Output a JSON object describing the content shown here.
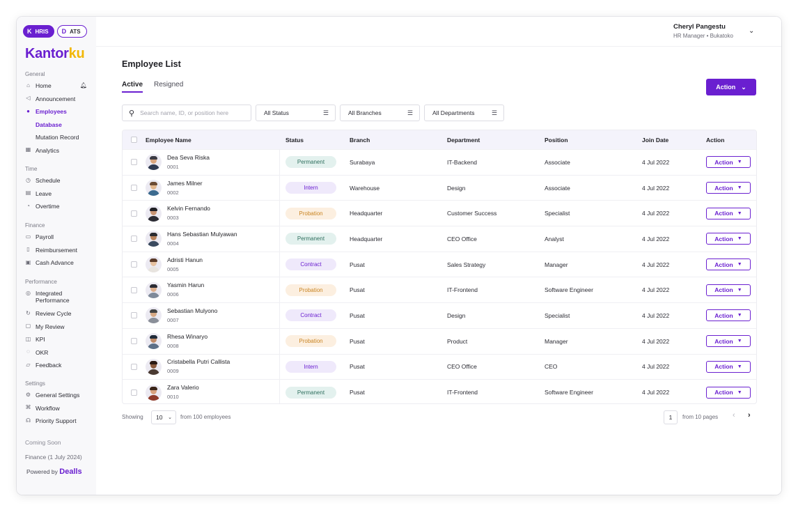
{
  "app": {
    "switcher": [
      {
        "label": "HRIS",
        "glyph": "K"
      },
      {
        "label": "ATS",
        "glyph": "D"
      }
    ],
    "logo": {
      "main": "Kantor",
      "accent": "ku"
    }
  },
  "sidebar": {
    "groups": [
      {
        "title": "General",
        "items": [
          {
            "label": "Home",
            "icon": "home-icon"
          },
          {
            "label": "Announcement",
            "icon": "megaphone-icon"
          },
          {
            "label": "Employees",
            "icon": "users-icon"
          },
          {
            "label": "Database"
          },
          {
            "label": "Mutation Record"
          },
          {
            "label": "Analytics",
            "icon": "chart-icon"
          }
        ]
      },
      {
        "title": "Time",
        "items": [
          {
            "label": "Schedule",
            "icon": "clock-icon"
          },
          {
            "label": "Leave",
            "icon": "calendar-icon"
          },
          {
            "label": "Overtime",
            "icon": "timer-icon"
          }
        ]
      },
      {
        "title": "Finance",
        "items": [
          {
            "label": "Payroll",
            "icon": "doc-icon"
          },
          {
            "label": "Reimbursement",
            "icon": "receipt-icon"
          },
          {
            "label": "Cash Advance",
            "icon": "wallet-icon"
          }
        ]
      },
      {
        "title": "Performance",
        "items": [
          {
            "label": "Integrated Performance",
            "icon": "target-icon"
          },
          {
            "label": "Review Cycle",
            "icon": "cycle-icon"
          },
          {
            "label": "My Review",
            "icon": "review-icon"
          },
          {
            "label": "KPI",
            "icon": "kpi-icon"
          },
          {
            "label": "OKR",
            "icon": "okr-icon"
          },
          {
            "label": "Feedback",
            "icon": "feedback-icon"
          }
        ]
      },
      {
        "title": "Settings",
        "items": [
          {
            "label": "General Settings",
            "icon": "gear-icon"
          },
          {
            "label": "Workflow",
            "icon": "workflow-icon"
          },
          {
            "label": "Priority Support",
            "icon": "support-icon"
          }
        ]
      }
    ],
    "coming_soon": "Coming Soon",
    "coming_item": "Finance (1 July 2024)",
    "powered_by": "Powered by",
    "powered_brand": "Dealls"
  },
  "user": {
    "name": "Cheryl Pangestu",
    "role": "HR Manager • Bukatoko"
  },
  "page": {
    "title": "Employee List"
  },
  "tabs": [
    {
      "label": "Active"
    },
    {
      "label": "Resigned"
    }
  ],
  "action_button": "Action",
  "search": {
    "placeholder": "Search name, ID, or position here"
  },
  "filters": [
    {
      "label": "All Status"
    },
    {
      "label": "All Branches"
    },
    {
      "label": "All Departments"
    }
  ],
  "table": {
    "headers": {
      "name": "Employee Name",
      "status": "Status",
      "branch": "Branch",
      "department": "Department",
      "position": "Position",
      "join_date": "Join Date",
      "action": "Action"
    },
    "rows": [
      {
        "name": "Dea Seva Riska",
        "id": "0001",
        "status": "Permanent",
        "branch": "Surabaya",
        "department": "IT-Backend",
        "position": "Associate",
        "join_date": "4 Jul 2022",
        "action": "Action"
      },
      {
        "name": "James Milner",
        "id": "0002",
        "status": "Intern",
        "branch": "Warehouse",
        "department": "Design",
        "position": "Associate",
        "join_date": "4 Jul 2022",
        "action": "Action"
      },
      {
        "name": "Kelvin Fernando",
        "id": "0003",
        "status": "Probation",
        "branch": "Headquarter",
        "department": "Customer Success",
        "position": "Specialist",
        "join_date": "4 Jul 2022",
        "action": "Action"
      },
      {
        "name": "Hans Sebastian Mulyawan",
        "id": "0004",
        "status": "Permanent",
        "branch": "Headquarter",
        "department": "CEO Office",
        "position": "Analyst",
        "join_date": "4 Jul 2022",
        "action": "Action"
      },
      {
        "name": "Adristi Hanun",
        "id": "0005",
        "status": "Contract",
        "branch": "Pusat",
        "department": "Sales Strategy",
        "position": "Manager",
        "join_date": "4 Jul 2022",
        "action": "Action"
      },
      {
        "name": "Yasmin Harun",
        "id": "0006",
        "status": "Probation",
        "branch": "Pusat",
        "department": "IT-Frontend",
        "position": "Software Engineer",
        "join_date": "4 Jul 2022",
        "action": "Action"
      },
      {
        "name": "Sebastian Mulyono",
        "id": "0007",
        "status": "Contract",
        "branch": "Pusat",
        "department": "Design",
        "position": "Specialist",
        "join_date": "4 Jul 2022",
        "action": "Action"
      },
      {
        "name": "Rhesa Winaryo",
        "id": "0008",
        "status": "Probation",
        "branch": "Pusat",
        "department": "Product",
        "position": "Manager",
        "join_date": "4 Jul 2022",
        "action": "Action"
      },
      {
        "name": "Cristabella Putri Callista",
        "id": "0009",
        "status": "Intern",
        "branch": "Pusat",
        "department": "CEO Office",
        "position": "CEO",
        "join_date": "4 Jul 2022",
        "action": "Action"
      },
      {
        "name": "Zara Valerio",
        "id": "0010",
        "status": "Permanent",
        "branch": "Pusat",
        "department": "IT-Frontend",
        "position": "Software Engineer",
        "join_date": "4 Jul 2022",
        "action": "Action"
      }
    ]
  },
  "status_colors": {
    "Permanent": {
      "bg": "#e3f1ee",
      "fg": "#2f6f5e"
    },
    "Intern": {
      "bg": "#efe9fb",
      "fg": "#6a1fd0"
    },
    "Probation": {
      "bg": "#fcefe0",
      "fg": "#c98422"
    },
    "Contract": {
      "bg": "#efe9fb",
      "fg": "#6a1fd0"
    }
  },
  "pagination": {
    "showing": "Showing",
    "page_size": "10",
    "from_total": "from 100 employees",
    "current_page": "1",
    "from_pages": "from 10 pages"
  },
  "colors": {
    "accent": "#6a1fd0",
    "logo_accent": "#f2b705"
  }
}
